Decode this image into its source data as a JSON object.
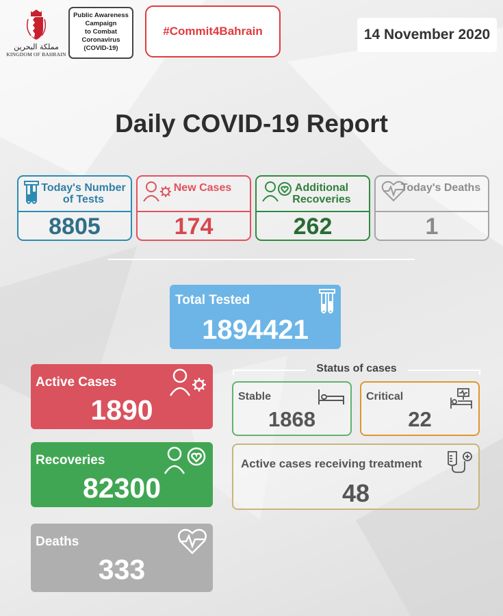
{
  "header": {
    "emblem": {
      "arabic_name": "مملكة البحرين",
      "english_name": "KINGDOM OF BAHRAIN"
    },
    "campaign_lines": [
      "Public Awareness",
      "Campaign",
      "to Combat",
      "Coronavirus",
      "(COVID-19)"
    ],
    "hashtag": "#Commit4Bahrain",
    "date": "14 November 2020"
  },
  "title": "Daily COVID-19 Report",
  "daily": [
    {
      "label": "Today's Number of Tests",
      "value": "8805",
      "icon": "test-tubes-icon",
      "color": "#2d8bb2"
    },
    {
      "label": "New Cases",
      "value": "174",
      "icon": "person-virus-icon",
      "color": "#e0525d"
    },
    {
      "label": "Additional Recoveries",
      "value": "262",
      "icon": "person-heart-icon",
      "color": "#2f8a3f"
    },
    {
      "label": "Today's Deaths",
      "value": "1",
      "icon": "heart-pulse-icon",
      "color": "#a4a4a4"
    }
  ],
  "total_tested": {
    "label": "Total Tested",
    "value": "1894421",
    "color": "#6cb5e6"
  },
  "active_cases": {
    "label": "Active Cases",
    "value": "1890",
    "color": "#d9525e"
  },
  "recoveries": {
    "label": "Recoveries",
    "value": "82300",
    "color": "#41a653"
  },
  "deaths": {
    "label": "Deaths",
    "value": "333",
    "color": "#afafaf"
  },
  "status": {
    "title": "Status of cases",
    "stable": {
      "label": "Stable",
      "value": "1868",
      "icon": "bed-icon"
    },
    "critical": {
      "label": "Critical",
      "value": "22",
      "icon": "hospital-bed-monitor-icon"
    },
    "treatment": {
      "label": "Active cases receiving treatment",
      "value": "48",
      "icon": "iv-drip-icon"
    }
  }
}
